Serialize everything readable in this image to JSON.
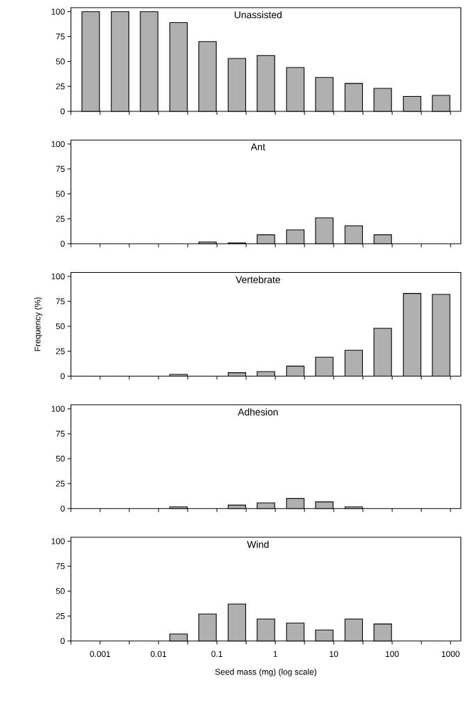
{
  "chart_data": [
    {
      "type": "bar",
      "title": "Unassisted",
      "color": "#b0b0b0",
      "log": "x",
      "tick_labels": "y",
      "x": [
        0.00069,
        0.0022,
        0.0069,
        0.022,
        0.069,
        0.22,
        0.69,
        2.2,
        6.9,
        22,
        69,
        220,
        690
      ],
      "values": [
        100,
        100,
        100,
        89,
        70,
        53,
        56,
        44,
        34,
        28,
        23,
        15,
        16
      ],
      "xlim": [
        0.000316,
        1500
      ],
      "ylim": [
        0,
        104
      ],
      "xticks": [
        {
          "value": 0.000316,
          "label": null
        },
        0.001,
        {
          "value": 0.00316,
          "label": null
        },
        0.01,
        {
          "value": 0.0316,
          "label": null
        },
        0.1,
        {
          "value": 0.316,
          "label": null
        },
        1,
        {
          "value": 3.16,
          "label": null
        },
        10,
        {
          "value": 31.6,
          "label": null
        },
        100,
        {
          "value": 316,
          "label": null
        },
        1000
      ],
      "yticks": [
        0,
        25,
        50,
        75,
        100
      ]
    },
    {
      "type": "bar",
      "title": "Ant",
      "color": "#b0b0b0",
      "log": "x",
      "tick_labels": "y",
      "x": [
        0.069,
        0.22,
        0.69,
        2.2,
        6.9,
        22,
        69
      ],
      "values": [
        1.7,
        0.9,
        9,
        14,
        26,
        18,
        9
      ],
      "xlim": [
        0.000316,
        1500
      ],
      "ylim": [
        0,
        104
      ],
      "xticks": [
        {
          "value": 0.000316,
          "label": null
        },
        0.001,
        {
          "value": 0.00316,
          "label": null
        },
        0.01,
        {
          "value": 0.0316,
          "label": null
        },
        0.1,
        {
          "value": 0.316,
          "label": null
        },
        1,
        {
          "value": 3.16,
          "label": null
        },
        10,
        {
          "value": 31.6,
          "label": null
        },
        100,
        {
          "value": 316,
          "label": null
        },
        1000
      ],
      "yticks": [
        0,
        25,
        50,
        75,
        100
      ]
    },
    {
      "type": "bar",
      "title": "Vertebrate",
      "ylabel": "Frequency (%)",
      "color": "#b0b0b0",
      "log": "x",
      "tick_labels": "y",
      "x": [
        0.022,
        0.22,
        0.69,
        2.2,
        6.9,
        22,
        69,
        220,
        690
      ],
      "values": [
        1.7,
        3.4,
        4.5,
        10,
        19,
        26,
        48,
        83,
        82
      ],
      "xlim": [
        0.000316,
        1500
      ],
      "ylim": [
        0,
        104
      ],
      "xticks": [
        {
          "value": 0.000316,
          "label": null
        },
        0.001,
        {
          "value": 0.00316,
          "label": null
        },
        0.01,
        {
          "value": 0.0316,
          "label": null
        },
        0.1,
        {
          "value": 0.316,
          "label": null
        },
        1,
        {
          "value": 3.16,
          "label": null
        },
        10,
        {
          "value": 31.6,
          "label": null
        },
        100,
        {
          "value": 316,
          "label": null
        },
        1000
      ],
      "yticks": [
        0,
        25,
        50,
        75,
        100
      ]
    },
    {
      "type": "bar",
      "title": "Adhesion",
      "color": "#b0b0b0",
      "log": "x",
      "tick_labels": "y",
      "x": [
        0.022,
        0.22,
        0.69,
        2.2,
        6.9,
        22
      ],
      "values": [
        1.7,
        3.4,
        5.6,
        10,
        6.7,
        1.7
      ],
      "xlim": [
        0.000316,
        1500
      ],
      "ylim": [
        0,
        104
      ],
      "xticks": [
        {
          "value": 0.000316,
          "label": null
        },
        0.001,
        {
          "value": 0.00316,
          "label": null
        },
        0.01,
        {
          "value": 0.0316,
          "label": null
        },
        0.1,
        {
          "value": 0.316,
          "label": null
        },
        1,
        {
          "value": 3.16,
          "label": null
        },
        10,
        {
          "value": 31.6,
          "label": null
        },
        100,
        {
          "value": 316,
          "label": null
        },
        1000
      ],
      "yticks": [
        0,
        25,
        50,
        75,
        100
      ]
    },
    {
      "type": "bar",
      "title": "Wind",
      "xlabel": "Seed mass (mg) (log scale)",
      "color": "#b0b0b0",
      "log": "x",
      "x": [
        0.022,
        0.069,
        0.22,
        0.69,
        2.2,
        6.9,
        22,
        69
      ],
      "values": [
        7,
        27,
        37,
        22,
        18,
        11,
        22,
        17
      ],
      "xlim": [
        0.000316,
        1500
      ],
      "ylim": [
        0,
        104
      ],
      "xticks": [
        {
          "value": 0.000316,
          "label": null
        },
        0.001,
        {
          "value": 0.00316,
          "label": null
        },
        0.01,
        {
          "value": 0.0316,
          "label": null
        },
        0.1,
        {
          "value": 0.316,
          "label": null
        },
        1,
        {
          "value": 3.16,
          "label": null
        },
        10,
        {
          "value": 31.6,
          "label": null
        },
        100,
        {
          "value": 316,
          "label": null
        },
        1000
      ],
      "yticks": [
        0,
        25,
        50,
        75,
        100
      ]
    }
  ]
}
